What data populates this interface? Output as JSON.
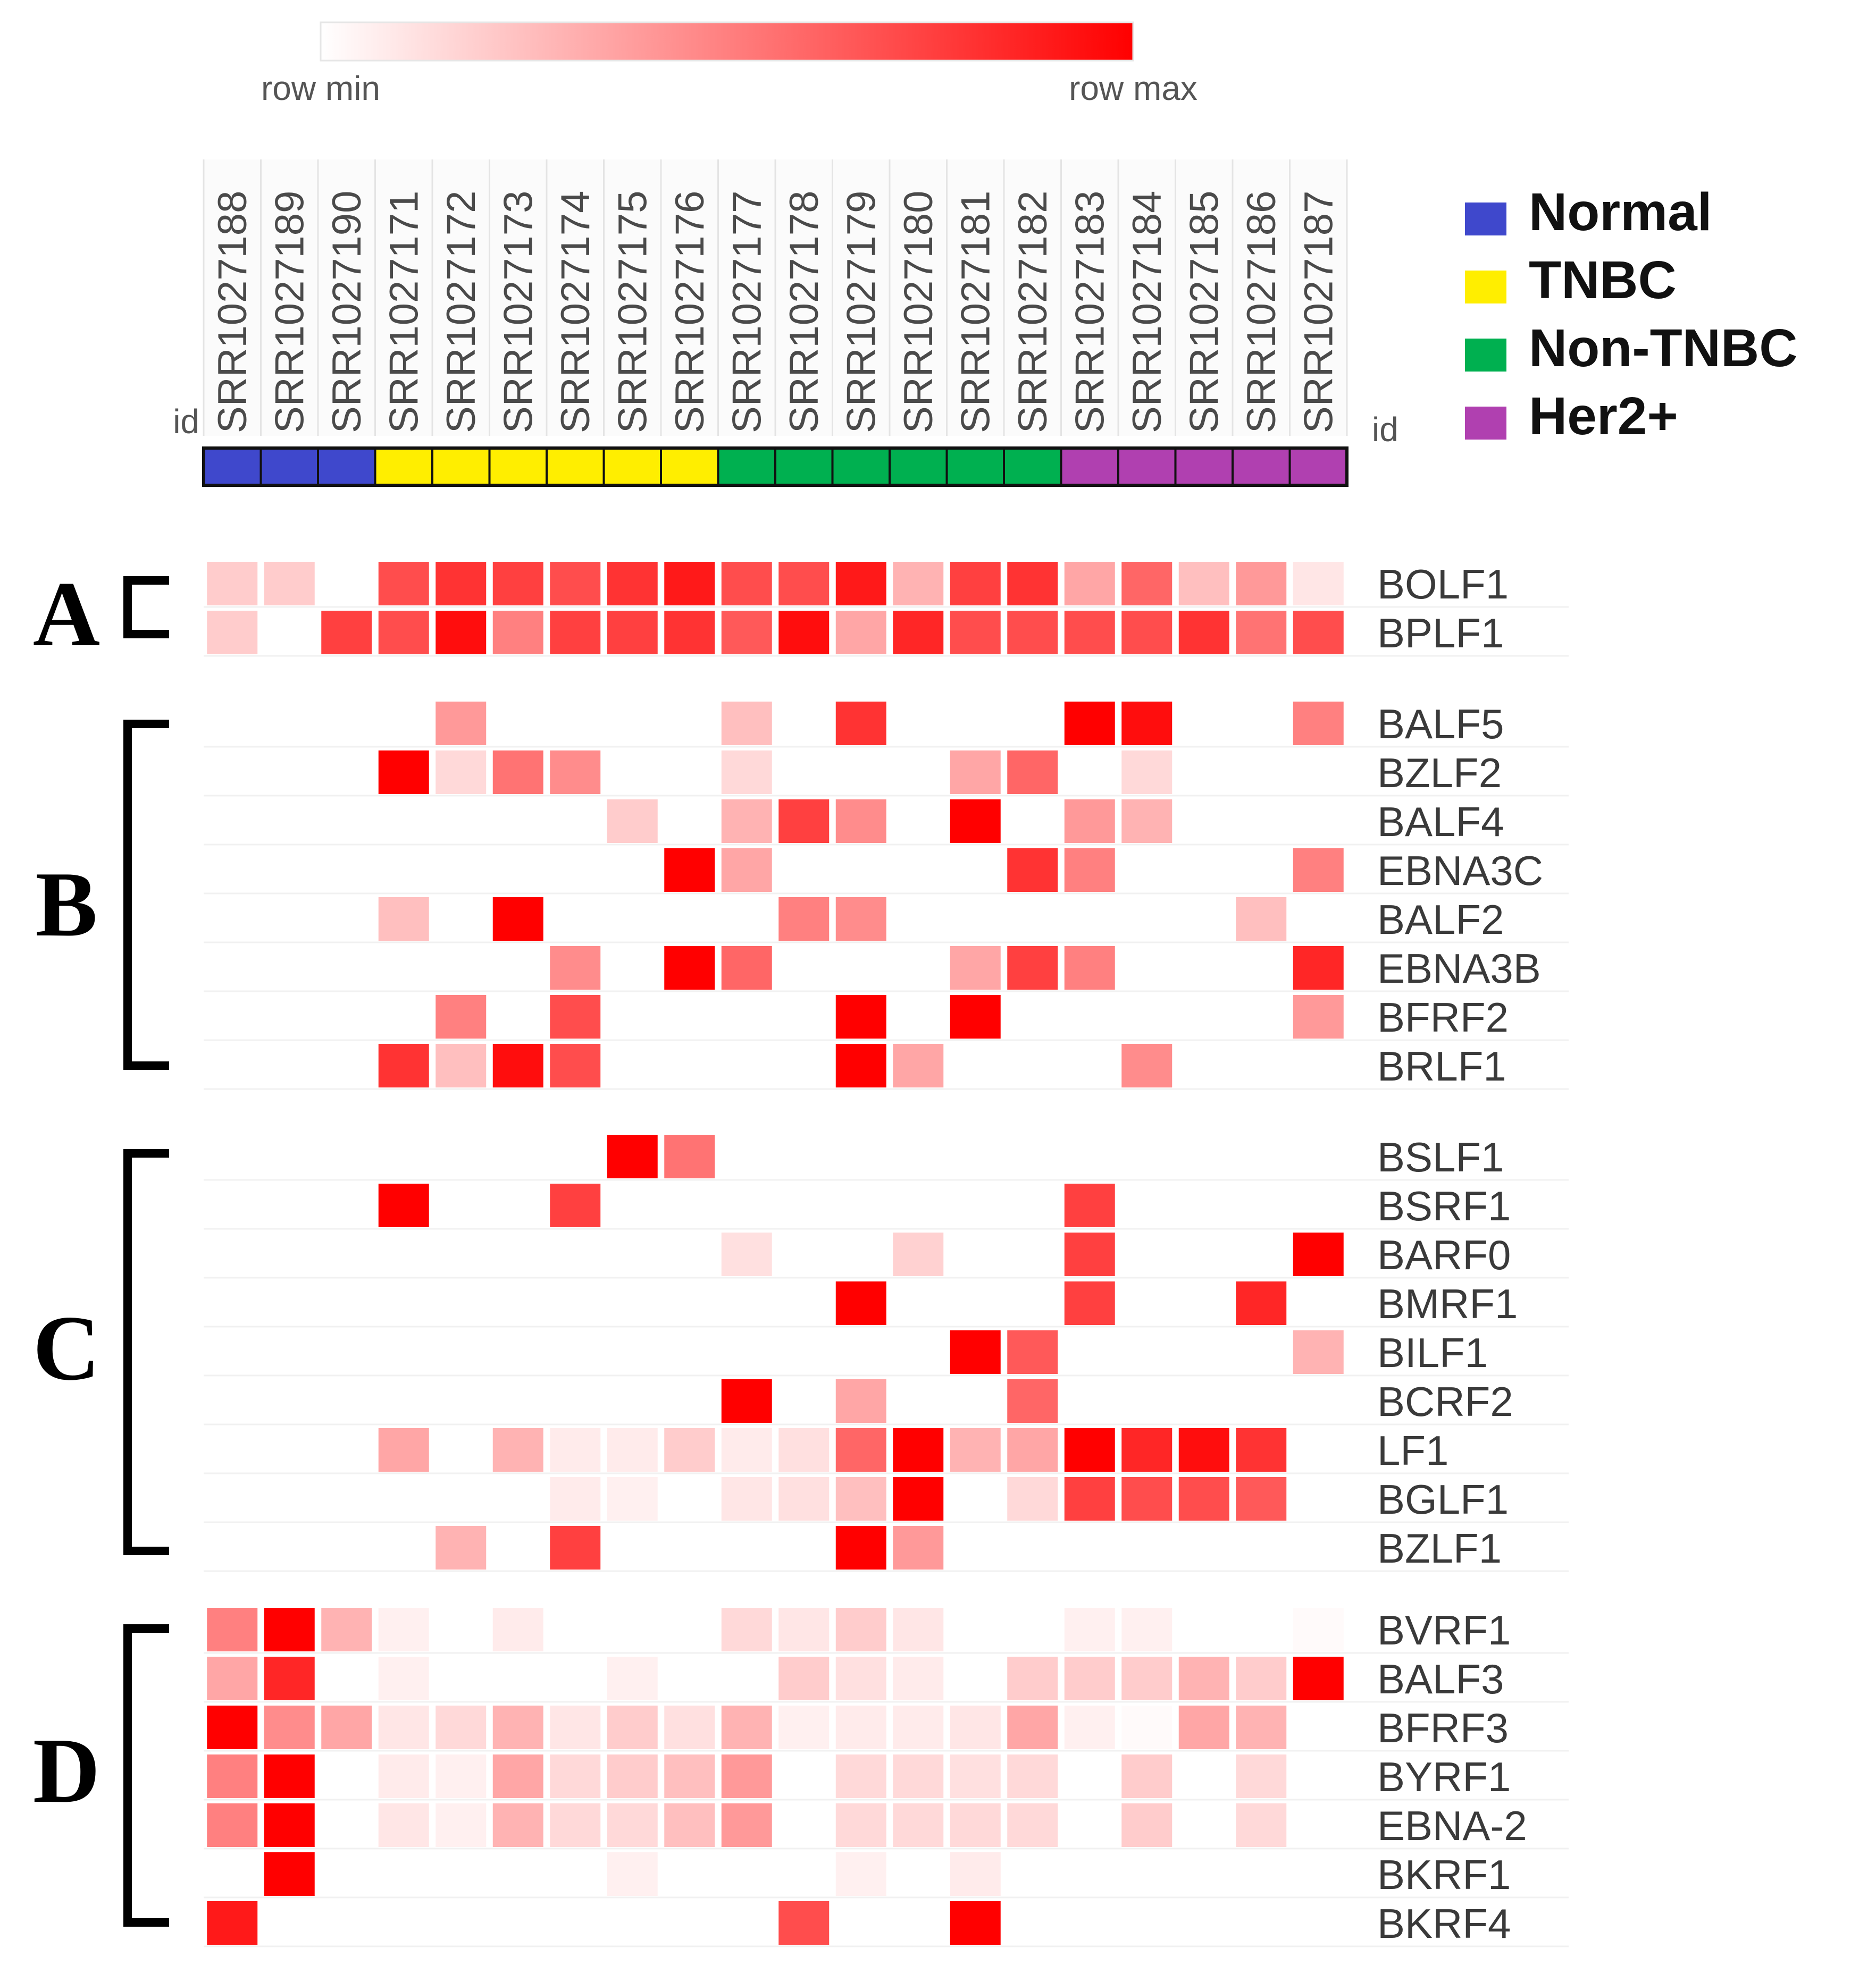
{
  "chart_data": {
    "type": "heatmap",
    "color_scale": {
      "min_label": "row min",
      "max_label": "row max",
      "min_color": "#ffffff",
      "max_color": "#ff0000"
    },
    "id_label": "id",
    "samples": [
      "SRR1027188",
      "SRR1027189",
      "SRR1027190",
      "SRR1027171",
      "SRR1027172",
      "SRR1027173",
      "SRR1027174",
      "SRR1027175",
      "SRR1027176",
      "SRR1027177",
      "SRR1027178",
      "SRR1027179",
      "SRR1027180",
      "SRR1027181",
      "SRR1027182",
      "SRR1027183",
      "SRR1027184",
      "SRR1027185",
      "SRR1027186",
      "SRR1027187"
    ],
    "sample_groups": [
      "Normal",
      "Normal",
      "Normal",
      "TNBC",
      "TNBC",
      "TNBC",
      "TNBC",
      "TNBC",
      "TNBC",
      "Non-TNBC",
      "Non-TNBC",
      "Non-TNBC",
      "Non-TNBC",
      "Non-TNBC",
      "Non-TNBC",
      "Her2+",
      "Her2+",
      "Her2+",
      "Her2+",
      "Her2+"
    ],
    "legend": [
      {
        "name": "Normal",
        "color": "#3f48cc"
      },
      {
        "name": "TNBC",
        "color": "#ffee00"
      },
      {
        "name": "Non-TNBC",
        "color": "#00b050"
      },
      {
        "name": "Her2+",
        "color": "#b040b0"
      }
    ],
    "clusters": [
      {
        "letter": "A",
        "genes": [
          {
            "name": "BOLF1",
            "values": [
              0.2,
              0.2,
              0,
              0.7,
              0.8,
              0.75,
              0.7,
              0.8,
              0.9,
              0.7,
              0.7,
              0.9,
              0.3,
              0.75,
              0.8,
              0.35,
              0.6,
              0.25,
              0.4,
              0.1
            ]
          },
          {
            "name": "BPLF1",
            "values": [
              0.2,
              0,
              0.75,
              0.7,
              0.95,
              0.5,
              0.75,
              0.75,
              0.8,
              0.65,
              0.95,
              0.35,
              0.85,
              0.7,
              0.7,
              0.7,
              0.7,
              0.8,
              0.55,
              0.7
            ]
          }
        ]
      },
      {
        "letter": "B",
        "genes": [
          {
            "name": "BALF5",
            "values": [
              0,
              0,
              0,
              0,
              0.4,
              0,
              0,
              0,
              0,
              0.25,
              0,
              0.8,
              0,
              0,
              0,
              1,
              0.95,
              0,
              0,
              0.5
            ]
          },
          {
            "name": "BZLF2",
            "values": [
              0,
              0,
              0,
              1,
              0.15,
              0.55,
              0.45,
              0,
              0,
              0.15,
              0,
              0,
              0,
              0.35,
              0.6,
              0,
              0.15,
              0,
              0,
              0
            ]
          },
          {
            "name": "BALF4",
            "values": [
              0,
              0,
              0,
              0,
              0,
              0,
              0,
              0.2,
              0,
              0.3,
              0.75,
              0.45,
              0,
              1,
              0,
              0.4,
              0.3,
              0,
              0,
              0
            ]
          },
          {
            "name": "EBNA3C",
            "values": [
              0,
              0,
              0,
              0,
              0,
              0,
              0,
              0,
              1,
              0.35,
              0,
              0,
              0,
              0,
              0.8,
              0.5,
              0,
              0,
              0,
              0.5
            ]
          },
          {
            "name": "BALF2",
            "values": [
              0,
              0,
              0,
              0.25,
              0,
              1,
              0,
              0,
              0,
              0,
              0.5,
              0.45,
              0,
              0,
              0,
              0,
              0,
              0,
              0.25,
              0
            ]
          },
          {
            "name": "EBNA3B",
            "values": [
              0,
              0,
              0,
              0,
              0,
              0,
              0.45,
              0,
              1,
              0.6,
              0,
              0,
              0,
              0.35,
              0.75,
              0.5,
              0,
              0,
              0,
              0.85
            ]
          },
          {
            "name": "BFRF2",
            "values": [
              0,
              0,
              0,
              0,
              0.5,
              0,
              0.7,
              0,
              0,
              0,
              0,
              1,
              0,
              1,
              0,
              0,
              0,
              0,
              0,
              0.4
            ]
          },
          {
            "name": "BRLF1",
            "values": [
              0,
              0,
              0,
              0.8,
              0.25,
              0.95,
              0.7,
              0,
              0,
              0,
              0,
              1,
              0.35,
              0,
              0,
              0,
              0.45,
              0,
              0,
              0
            ]
          }
        ]
      },
      {
        "letter": "C",
        "genes": [
          {
            "name": "BSLF1",
            "values": [
              0,
              0,
              0,
              0,
              0,
              0,
              0,
              1,
              0.55,
              0,
              0,
              0,
              0,
              0,
              0,
              0,
              0,
              0,
              0,
              0
            ]
          },
          {
            "name": "BSRF1",
            "values": [
              0,
              0,
              0,
              1,
              0,
              0,
              0.75,
              0,
              0,
              0,
              0,
              0,
              0,
              0,
              0,
              0.75,
              0,
              0,
              0,
              0
            ]
          },
          {
            "name": "BARF0",
            "values": [
              0,
              0,
              0,
              0,
              0,
              0,
              0,
              0,
              0,
              0.12,
              0,
              0,
              0.18,
              0,
              0,
              0.75,
              0,
              0,
              0,
              1
            ]
          },
          {
            "name": "BMRF1",
            "values": [
              0,
              0,
              0,
              0,
              0,
              0,
              0,
              0,
              0,
              0,
              0,
              1,
              0,
              0,
              0,
              0.75,
              0,
              0,
              0.85,
              0
            ]
          },
          {
            "name": "BILF1",
            "values": [
              0,
              0,
              0,
              0,
              0,
              0,
              0,
              0,
              0,
              0,
              0,
              0,
              0,
              1,
              0.65,
              0,
              0,
              0,
              0,
              0.3
            ]
          },
          {
            "name": "BCRF2",
            "values": [
              0,
              0,
              0,
              0,
              0,
              0,
              0,
              0,
              0,
              1,
              0,
              0.35,
              0,
              0,
              0.6,
              0,
              0,
              0,
              0,
              0
            ]
          },
          {
            "name": "LF1",
            "values": [
              0,
              0,
              0,
              0.35,
              0,
              0.3,
              0.08,
              0.08,
              0.2,
              0.08,
              0.12,
              0.6,
              1,
              0.3,
              0.35,
              1,
              0.85,
              0.95,
              0.8,
              0
            ]
          },
          {
            "name": "BGLF1",
            "values": [
              0,
              0,
              0,
              0,
              0,
              0,
              0.08,
              0.06,
              0,
              0.1,
              0.12,
              0.25,
              1,
              0,
              0.15,
              0.75,
              0.7,
              0.7,
              0.65,
              0
            ]
          },
          {
            "name": "BZLF1",
            "values": [
              0,
              0,
              0,
              0,
              0.3,
              0,
              0.75,
              0,
              0,
              0,
              0,
              1,
              0.4,
              0,
              0,
              0,
              0,
              0,
              0,
              0
            ]
          }
        ]
      },
      {
        "letter": "D",
        "genes": [
          {
            "name": "BVRF1",
            "values": [
              0.5,
              1,
              0.3,
              0.06,
              0,
              0.08,
              0,
              0,
              0,
              0.15,
              0.1,
              0.2,
              0.1,
              0,
              0,
              0.06,
              0.06,
              0,
              0,
              0.02
            ]
          },
          {
            "name": "BALF3",
            "values": [
              0.35,
              0.85,
              0,
              0.06,
              0,
              0,
              0,
              0.06,
              0,
              0,
              0.2,
              0.12,
              0.08,
              0,
              0.2,
              0.2,
              0.2,
              0.3,
              0.2,
              1
            ]
          },
          {
            "name": "BFRF3",
            "values": [
              1,
              0.45,
              0.35,
              0.1,
              0.15,
              0.3,
              0.1,
              0.2,
              0.12,
              0.3,
              0.06,
              0.08,
              0.08,
              0.1,
              0.35,
              0.06,
              0.02,
              0.35,
              0.3,
              0
            ]
          },
          {
            "name": "BYRF1",
            "values": [
              0.5,
              1,
              0,
              0.08,
              0.06,
              0.35,
              0.15,
              0.2,
              0.25,
              0.4,
              0,
              0.15,
              0.15,
              0.12,
              0.15,
              0,
              0.2,
              0,
              0.15,
              0
            ]
          },
          {
            "name": "EBNA-2",
            "values": [
              0.5,
              1,
              0,
              0.1,
              0.06,
              0.3,
              0.15,
              0.15,
              0.25,
              0.4,
              0,
              0.15,
              0.15,
              0.15,
              0.15,
              0,
              0.2,
              0,
              0.15,
              0
            ]
          },
          {
            "name": "BKRF1",
            "values": [
              0,
              1,
              0,
              0,
              0,
              0,
              0,
              0.06,
              0,
              0,
              0,
              0.06,
              0,
              0.08,
              0,
              0,
              0,
              0,
              0,
              0
            ]
          },
          {
            "name": "BKRF4",
            "values": [
              0.9,
              0,
              0,
              0,
              0,
              0,
              0,
              0,
              0,
              0,
              0.7,
              0,
              0,
              1,
              0,
              0,
              0,
              0,
              0,
              0
            ]
          }
        ]
      }
    ]
  }
}
